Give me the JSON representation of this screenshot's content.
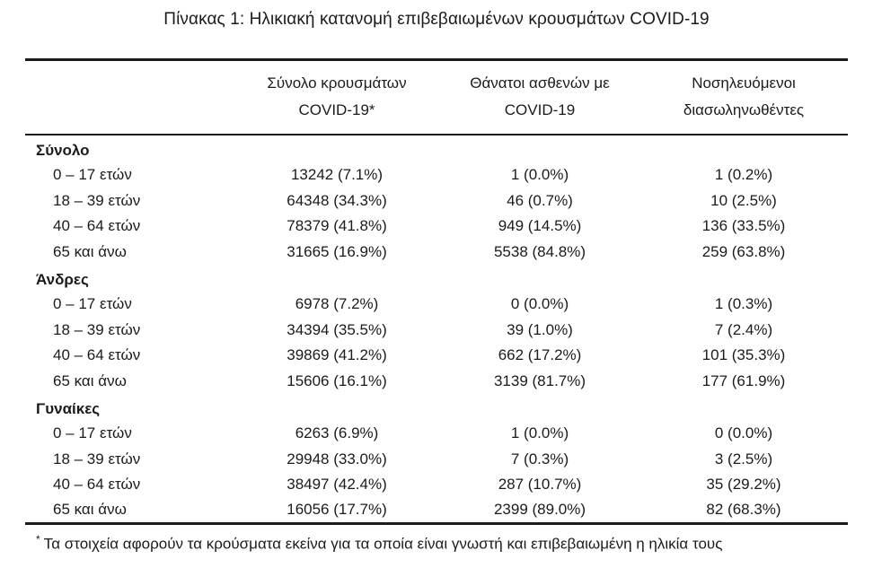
{
  "title": "Πίνακας 1: Ηλικιακή κατανομή επιβεβαιωμένων κρουσμάτων COVID-19",
  "table": {
    "column_headers": [
      {
        "line1": "Σύνολο κρουσμάτων",
        "line2": "COVID-19*"
      },
      {
        "line1": "Θάνατοι ασθενών με",
        "line2": "COVID-19"
      },
      {
        "line1": "Νοσηλευόμενοι",
        "line2": "διασωληνωθέντες"
      }
    ],
    "sections": [
      {
        "label": "Σύνολο",
        "rows": [
          {
            "label": "0 – 17 ετών",
            "cells": [
              "13242 (7.1%)",
              "1 (0.0%)",
              "1 (0.2%)"
            ]
          },
          {
            "label": "18 – 39 ετών",
            "cells": [
              "64348 (34.3%)",
              "46 (0.7%)",
              "10 (2.5%)"
            ]
          },
          {
            "label": "40 – 64 ετών",
            "cells": [
              "78379 (41.8%)",
              "949 (14.5%)",
              "136 (33.5%)"
            ]
          },
          {
            "label": "65 και άνω",
            "cells": [
              "31665 (16.9%)",
              "5538 (84.8%)",
              "259 (63.8%)"
            ]
          }
        ]
      },
      {
        "label": "Άνδρες",
        "rows": [
          {
            "label": "0 – 17 ετών",
            "cells": [
              "6978 (7.2%)",
              "0 (0.0%)",
              "1 (0.3%)"
            ]
          },
          {
            "label": "18 – 39 ετών",
            "cells": [
              "34394 (35.5%)",
              "39 (1.0%)",
              "7 (2.4%)"
            ]
          },
          {
            "label": "40 – 64 ετών",
            "cells": [
              "39869 (41.2%)",
              "662 (17.2%)",
              "101 (35.3%)"
            ]
          },
          {
            "label": "65 και άνω",
            "cells": [
              "15606 (16.1%)",
              "3139 (81.7%)",
              "177 (61.9%)"
            ]
          }
        ]
      },
      {
        "label": "Γυναίκες",
        "rows": [
          {
            "label": "0 – 17 ετών",
            "cells": [
              "6263 (6.9%)",
              "1 (0.0%)",
              "0 (0.0%)"
            ]
          },
          {
            "label": "18 – 39 ετών",
            "cells": [
              "29948 (33.0%)",
              "7 (0.3%)",
              "3 (2.5%)"
            ]
          },
          {
            "label": "40 – 64 ετών",
            "cells": [
              "38497 (42.4%)",
              "287 (10.7%)",
              "35 (29.2%)"
            ]
          },
          {
            "label": "65 και άνω",
            "cells": [
              "16056 (17.7%)",
              "2399 (89.0%)",
              "82 (68.3%)"
            ]
          }
        ]
      }
    ]
  },
  "footnote": {
    "marker": "*",
    "text": "Τα στοιχεία αφορούν τα κρούσματα εκείνα για τα οποία είναι γνωστή και επιβεβαιωμένη η ηλικία τους"
  },
  "colors": {
    "text": "#1b1b1b",
    "background": "#ffffff",
    "border": "#1b1b1b"
  }
}
